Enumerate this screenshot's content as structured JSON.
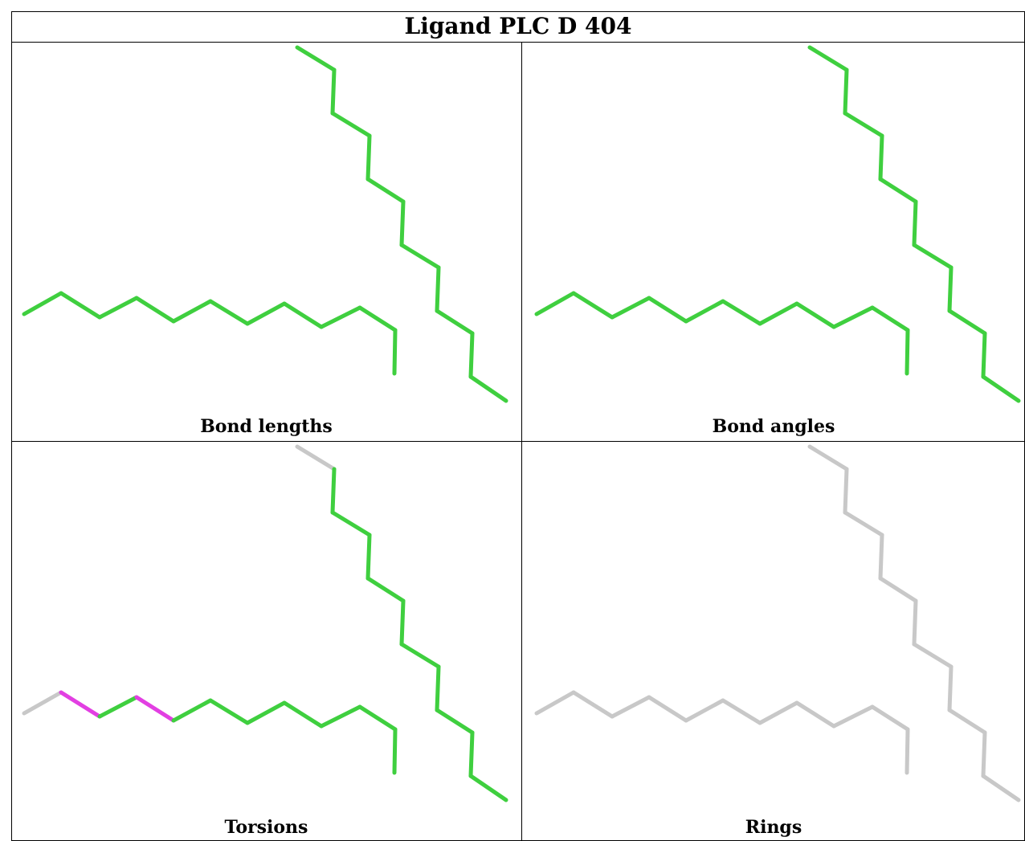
{
  "title": "Ligand PLC D 404",
  "colors": {
    "ok": "#3fcf3f",
    "outlier": "#e23fe2",
    "none": "#c8c8c8"
  },
  "panels": [
    {
      "key": "bond-lengths",
      "caption": "Bond lengths",
      "chainA": [
        "ok",
        "ok",
        "ok",
        "ok",
        "ok",
        "ok",
        "ok",
        "ok",
        "ok",
        "ok",
        "ok",
        "ok"
      ],
      "chainB": [
        "ok",
        "ok",
        "ok",
        "ok",
        "ok",
        "ok",
        "ok",
        "ok",
        "ok",
        "ok",
        "ok",
        "ok",
        "ok",
        "ok",
        "ok",
        "ok"
      ]
    },
    {
      "key": "bond-angles",
      "caption": "Bond angles",
      "chainA": [
        "ok",
        "ok",
        "ok",
        "ok",
        "ok",
        "ok",
        "ok",
        "ok",
        "ok",
        "ok",
        "ok",
        "ok"
      ],
      "chainB": [
        "ok",
        "ok",
        "ok",
        "ok",
        "ok",
        "ok",
        "ok",
        "ok",
        "ok",
        "ok",
        "ok",
        "ok",
        "ok",
        "ok",
        "ok",
        "ok"
      ]
    },
    {
      "key": "torsions",
      "caption": "Torsions",
      "chainA": [
        "none",
        "outlier",
        "ok",
        "outlier",
        "ok",
        "ok",
        "ok",
        "ok",
        "ok",
        "ok",
        "ok",
        "none"
      ],
      "chainB": [
        "none",
        "ok",
        "ok",
        "ok",
        "ok",
        "ok",
        "ok",
        "ok",
        "ok",
        "ok",
        "ok",
        "ok",
        "ok",
        "ok",
        "ok",
        "none"
      ]
    },
    {
      "key": "rings",
      "caption": "Rings",
      "chainA": [
        "none",
        "none",
        "none",
        "none",
        "none",
        "none",
        "none",
        "none",
        "none",
        "none",
        "none",
        "none"
      ],
      "chainB": [
        "none",
        "none",
        "none",
        "none",
        "none",
        "none",
        "none",
        "none",
        "none",
        "none",
        "none",
        "none",
        "none",
        "none",
        "none",
        "none"
      ]
    }
  ]
}
